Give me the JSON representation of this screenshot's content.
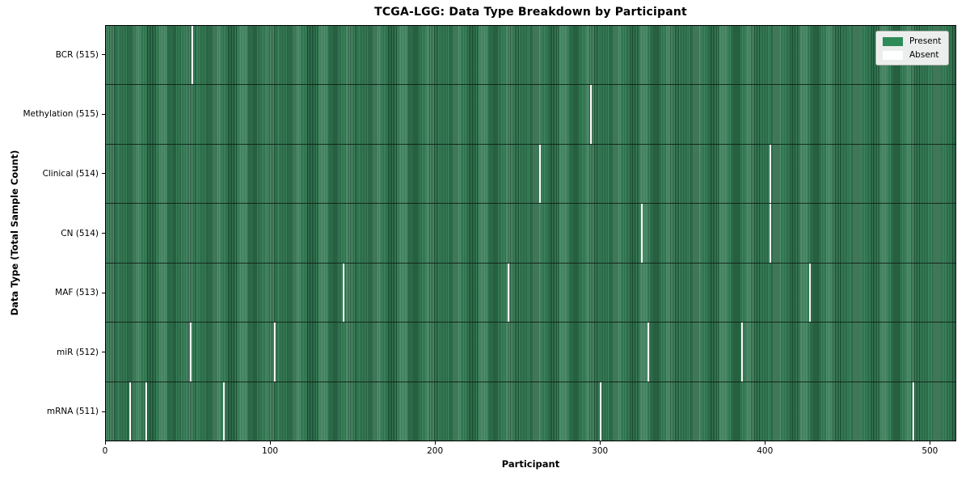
{
  "title": "TCGA-LGG: Data Type Breakdown by Participant",
  "chart_data": {
    "type": "heatmap",
    "title": "TCGA-LGG: Data Type Breakdown by Participant",
    "xlabel": "Participant",
    "ylabel": "Data Type (Total Sample Count)",
    "n_participants": 516,
    "x_range": [
      0,
      516
    ],
    "x_ticks": [
      0,
      100,
      200,
      300,
      400,
      500
    ],
    "grid": false,
    "legend": {
      "position": "upper right",
      "entries": [
        {
          "label": "Present",
          "color": "#2e8b57"
        },
        {
          "label": "Absent",
          "color": "#ffffff"
        }
      ]
    },
    "colors": {
      "present_fill": "#2e8b57",
      "absent_fill": "#ffffff",
      "stripe_dark": "#17452c",
      "stripe_light": "#3d8a60",
      "legend_background": "#ebeeec"
    },
    "rows": [
      {
        "label": "BCR (515)",
        "data_type": "BCR",
        "present_count": 515,
        "absent_count": 1,
        "absent_participants": [
          52
        ]
      },
      {
        "label": "Methylation (515)",
        "data_type": "Methylation",
        "present_count": 515,
        "absent_count": 1,
        "absent_participants": [
          294
        ]
      },
      {
        "label": "Clinical (514)",
        "data_type": "Clinical",
        "present_count": 514,
        "absent_count": 2,
        "absent_participants": [
          263,
          403
        ]
      },
      {
        "label": "CN (514)",
        "data_type": "CN",
        "present_count": 514,
        "absent_count": 2,
        "absent_participants": [
          325,
          403
        ]
      },
      {
        "label": "MAF (513)",
        "data_type": "MAF",
        "present_count": 513,
        "absent_count": 3,
        "absent_participants": [
          144,
          244,
          427
        ]
      },
      {
        "label": "miR (512)",
        "data_type": "miR",
        "present_count": 512,
        "absent_count": 4,
        "absent_participants": [
          51,
          102,
          329,
          386
        ]
      },
      {
        "label": "mRNA (511)",
        "data_type": "mRNA",
        "present_count": 511,
        "absent_count": 5,
        "absent_participants": [
          14,
          24,
          71,
          300,
          490
        ]
      }
    ]
  }
}
